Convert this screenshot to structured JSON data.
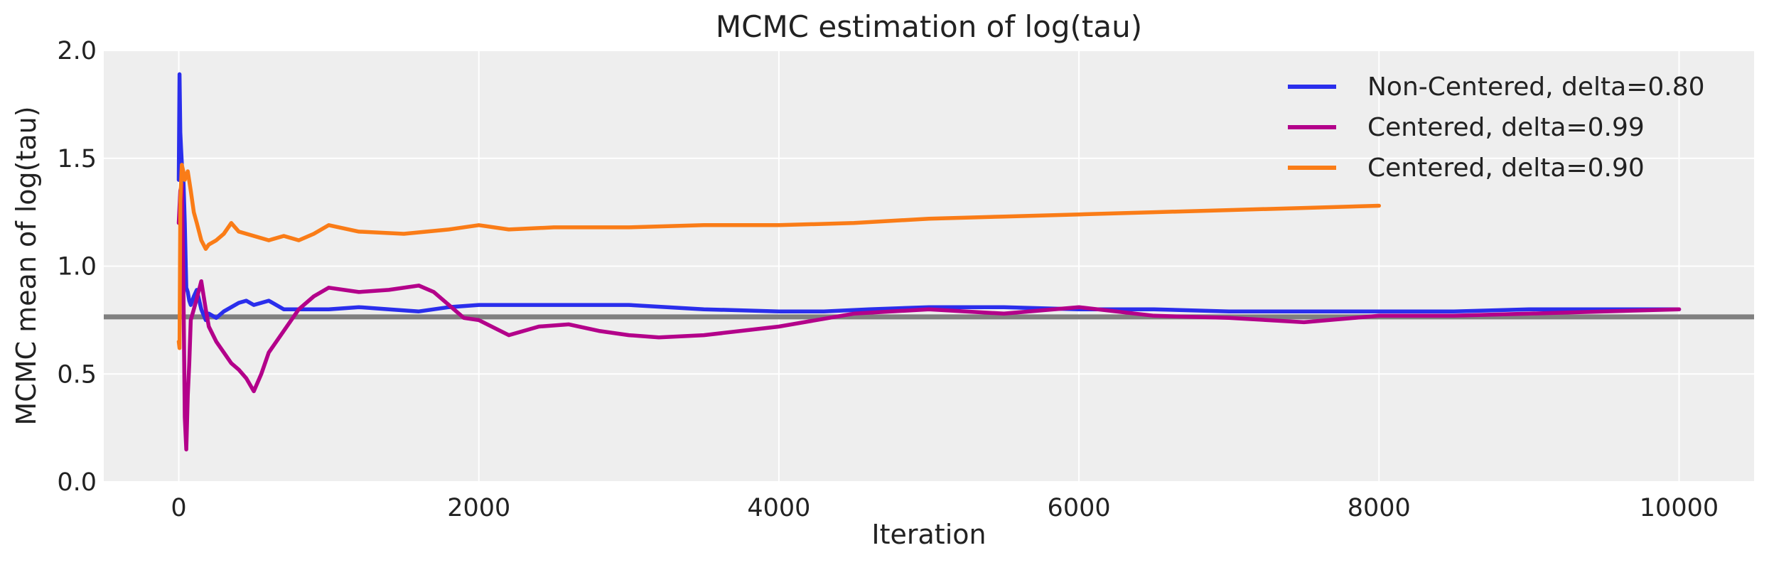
{
  "chart_data": {
    "type": "line",
    "title": "MCMC estimation of log(tau)",
    "xlabel": "Iteration",
    "ylabel": "MCMC mean of log(tau)",
    "xlim": [
      -500,
      10500
    ],
    "ylim": [
      0.0,
      2.0
    ],
    "xticks": [
      0,
      2000,
      4000,
      6000,
      8000,
      10000
    ],
    "xtick_labels": [
      "0",
      "2000",
      "4000",
      "6000",
      "8000",
      "10000"
    ],
    "yticks": [
      0.0,
      0.5,
      1.0,
      1.5,
      2.0
    ],
    "ytick_labels": [
      "0.0",
      "0.5",
      "1.0",
      "1.5",
      "2.0"
    ],
    "grid": true,
    "legend_position": "top-right",
    "reference_line": {
      "y": 0.765,
      "color": "#808080"
    },
    "series": [
      {
        "name": "Non-Centered, delta=0.80",
        "color": "#2a2eec",
        "x": [
          0,
          5,
          10,
          15,
          20,
          25,
          30,
          40,
          50,
          60,
          70,
          80,
          100,
          120,
          150,
          180,
          200,
          250,
          300,
          350,
          400,
          450,
          500,
          600,
          700,
          800,
          900,
          1000,
          1200,
          1400,
          1600,
          1800,
          2000,
          2200,
          2500,
          2800,
          3000,
          3500,
          4000,
          4300,
          4600,
          5000,
          5500,
          6000,
          6500,
          7000,
          7500,
          8000,
          8500,
          9000,
          9500,
          10000
        ],
        "values": [
          1.4,
          1.89,
          1.62,
          1.55,
          1.48,
          1.3,
          1.42,
          1.2,
          0.9,
          0.88,
          0.84,
          0.82,
          0.86,
          0.89,
          0.8,
          0.75,
          0.78,
          0.76,
          0.79,
          0.81,
          0.83,
          0.84,
          0.82,
          0.84,
          0.8,
          0.8,
          0.8,
          0.8,
          0.81,
          0.8,
          0.79,
          0.81,
          0.82,
          0.82,
          0.82,
          0.82,
          0.82,
          0.8,
          0.79,
          0.79,
          0.8,
          0.81,
          0.81,
          0.8,
          0.8,
          0.79,
          0.79,
          0.79,
          0.79,
          0.8,
          0.8,
          0.8
        ]
      },
      {
        "name": "Centered, delta=0.99",
        "color": "#b3008a",
        "x": [
          0,
          10,
          20,
          30,
          40,
          50,
          60,
          70,
          80,
          100,
          120,
          150,
          180,
          200,
          250,
          300,
          350,
          400,
          450,
          500,
          550,
          600,
          700,
          800,
          900,
          1000,
          1200,
          1400,
          1600,
          1700,
          1800,
          1900,
          2000,
          2200,
          2400,
          2600,
          2800,
          3000,
          3200,
          3500,
          4000,
          4500,
          5000,
          5500,
          6000,
          6500,
          7000,
          7500,
          8000,
          8500,
          9000,
          9500,
          10000
        ],
        "values": [
          1.2,
          1.35,
          1.38,
          0.95,
          0.3,
          0.15,
          0.4,
          0.55,
          0.75,
          0.8,
          0.85,
          0.93,
          0.8,
          0.72,
          0.65,
          0.6,
          0.55,
          0.52,
          0.48,
          0.42,
          0.5,
          0.6,
          0.7,
          0.8,
          0.86,
          0.9,
          0.88,
          0.89,
          0.91,
          0.88,
          0.82,
          0.76,
          0.75,
          0.68,
          0.72,
          0.73,
          0.7,
          0.68,
          0.67,
          0.68,
          0.72,
          0.78,
          0.8,
          0.78,
          0.81,
          0.77,
          0.76,
          0.74,
          0.77,
          0.77,
          0.78,
          0.79,
          0.8
        ]
      },
      {
        "name": "Centered, delta=0.90",
        "color": "#fa7c17",
        "x": [
          0,
          5,
          10,
          20,
          30,
          40,
          60,
          80,
          100,
          120,
          150,
          180,
          200,
          250,
          300,
          350,
          400,
          500,
          600,
          700,
          800,
          900,
          1000,
          1200,
          1500,
          1800,
          2000,
          2200,
          2500,
          3000,
          3500,
          4000,
          4500,
          5000,
          5500,
          6000,
          6500,
          7000,
          7500,
          8000
        ],
        "values": [
          0.65,
          0.62,
          1.3,
          1.47,
          1.44,
          1.4,
          1.44,
          1.35,
          1.25,
          1.2,
          1.12,
          1.08,
          1.1,
          1.12,
          1.15,
          1.2,
          1.16,
          1.14,
          1.12,
          1.14,
          1.12,
          1.15,
          1.19,
          1.16,
          1.15,
          1.17,
          1.19,
          1.17,
          1.18,
          1.18,
          1.19,
          1.19,
          1.2,
          1.22,
          1.23,
          1.24,
          1.25,
          1.26,
          1.27,
          1.28
        ]
      }
    ]
  }
}
